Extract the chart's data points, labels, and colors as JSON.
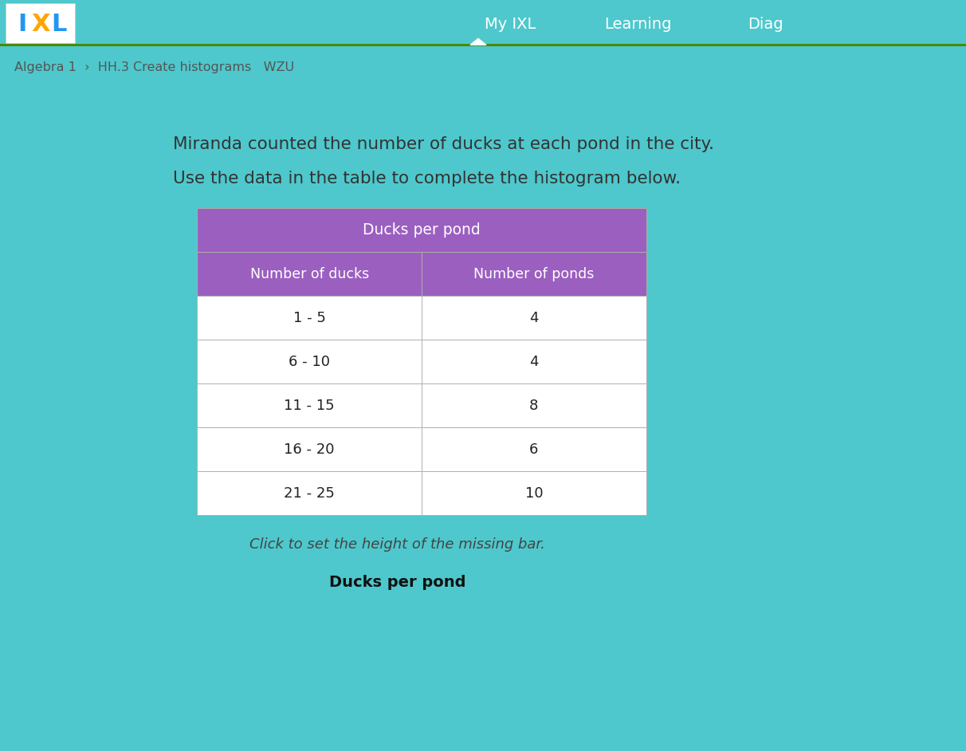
{
  "breadcrumb": "Algebra 1  ›  HH.3 Create histograms   WZU",
  "instruction1": "Miranda counted the number of ducks at each pond in the city.",
  "instruction2": "Use the data in the table to complete the histogram below.",
  "table_title": "Ducks per pond",
  "col1_header": "Number of ducks",
  "col2_header": "Number of ponds",
  "rows": [
    [
      "1 - 5",
      "4"
    ],
    [
      "6 - 10",
      "4"
    ],
    [
      "11 - 15",
      "8"
    ],
    [
      "16 - 20",
      "6"
    ],
    [
      "21 - 25",
      "10"
    ]
  ],
  "click_text": "Click to set the height of the missing bar.",
  "histogram_title": "Ducks per pond",
  "nav_bg": "#5a9e0a",
  "nav_text_color": "#ffffff",
  "page_bg": "#4ec8cc",
  "card_bg": "#eeece8",
  "breadcrumb_bg": "#f5f5f5",
  "table_header_bg": "#9b5fc0",
  "table_header_text": "#ffffff",
  "table_row_bg": "#ffffff",
  "table_border": "#aaaaaa",
  "ixl_box_bg": "#ffffff",
  "ixl_x_color": "#2196F3",
  "ixl_l_color": "#FFA500",
  "text_color": "#333333",
  "click_text_color": "#444444",
  "hist_title_color": "#111111"
}
